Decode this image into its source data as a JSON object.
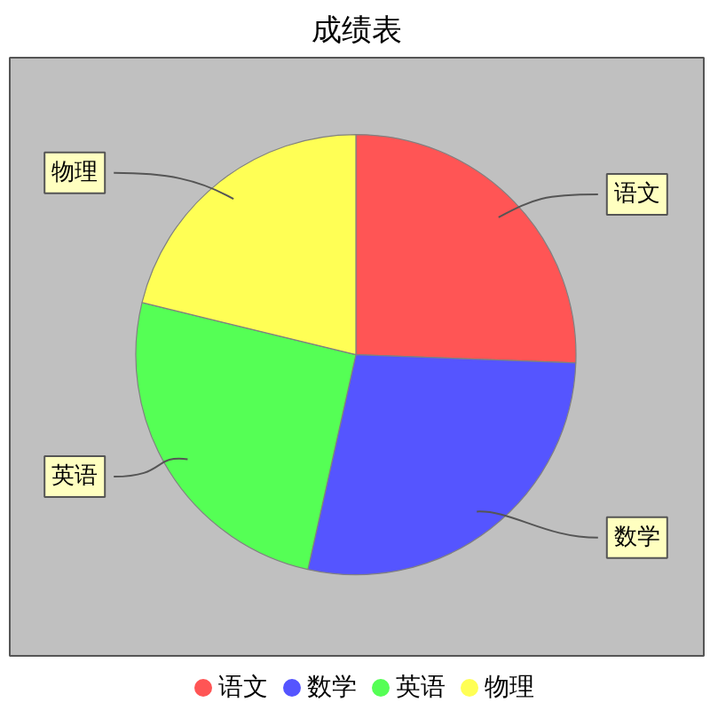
{
  "chart_data": {
    "type": "pie",
    "title": "成绩表",
    "categories": [
      "语文",
      "数学",
      "英语",
      "物理"
    ],
    "values": [
      25.6,
      27.9,
      25.3,
      21.2
    ],
    "colors": [
      "#ff5555",
      "#5555ff",
      "#55ff55",
      "#ffff55"
    ],
    "legend": "bottom"
  }
}
